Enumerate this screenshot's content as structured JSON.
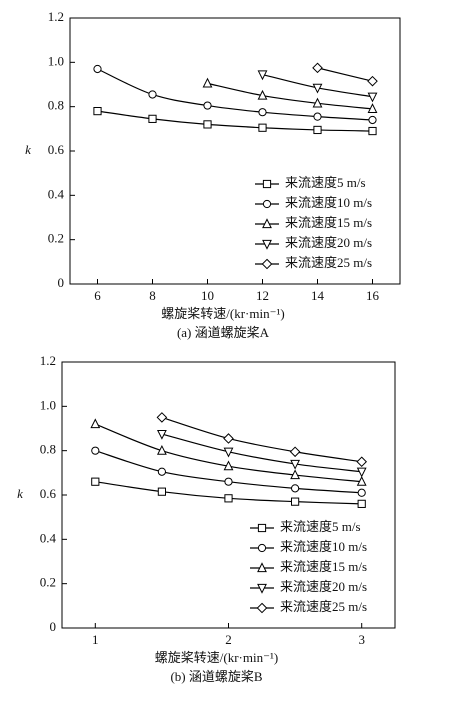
{
  "chart_data": [
    {
      "type": "line",
      "title": "(a) 涵道螺旋桨A",
      "x_label": "螺旋桨转速/(kr·min⁻¹)",
      "y_label": "k",
      "xlim": [
        5,
        17
      ],
      "xticks": [
        6,
        8,
        10,
        12,
        14,
        16
      ],
      "ylim": [
        0,
        1.2
      ],
      "yticks": [
        0,
        0.2,
        0.4,
        0.6,
        0.8,
        {
          "value": 1,
          "label": "1.0"
        },
        1.2
      ],
      "legend": "lower right",
      "series": [
        {
          "name": "来流速度5 m/s",
          "color": "#000000",
          "marker": "square",
          "x": [
            6,
            8,
            10,
            12,
            14,
            16
          ],
          "values": [
            0.78,
            0.745,
            0.72,
            0.705,
            0.695,
            0.69
          ]
        },
        {
          "name": "来流速度10 m/s",
          "color": "#000000",
          "marker": "circle",
          "x": [
            6,
            8,
            10,
            12,
            14,
            16
          ],
          "values": [
            0.97,
            0.855,
            0.805,
            0.775,
            0.755,
            0.74
          ]
        },
        {
          "name": "来流速度15 m/s",
          "color": "#000000",
          "marker": "triangle-up",
          "x": [
            10,
            12,
            14,
            16
          ],
          "values": [
            0.905,
            0.85,
            0.815,
            0.79
          ]
        },
        {
          "name": "来流速度20 m/s",
          "color": "#000000",
          "marker": "triangle-down",
          "x": [
            12,
            14,
            16
          ],
          "values": [
            0.945,
            0.885,
            0.845
          ]
        },
        {
          "name": "来流速度25 m/s",
          "color": "#000000",
          "marker": "diamond",
          "x": [
            14,
            16
          ],
          "values": [
            0.975,
            0.915
          ]
        }
      ]
    },
    {
      "type": "line",
      "title": "(b) 涵道螺旋桨B",
      "x_label": "螺旋桨转速/(kr·min⁻¹)",
      "y_label": "k",
      "xlim": [
        0.75,
        3.25
      ],
      "xticks": [
        1,
        2,
        3
      ],
      "ylim": [
        0,
        1.2
      ],
      "yticks": [
        0,
        0.2,
        0.4,
        0.6,
        0.8,
        {
          "value": 1,
          "label": "1.0"
        },
        1.2
      ],
      "legend": "lower right",
      "series": [
        {
          "name": "来流速度5 m/s",
          "color": "#000000",
          "marker": "square",
          "x": [
            1,
            1.5,
            2,
            2.5,
            3
          ],
          "values": [
            0.66,
            0.615,
            0.585,
            0.57,
            0.56
          ]
        },
        {
          "name": "来流速度10 m/s",
          "color": "#000000",
          "marker": "circle",
          "x": [
            1,
            1.5,
            2,
            2.5,
            3
          ],
          "values": [
            0.8,
            0.705,
            0.66,
            0.63,
            0.61
          ]
        },
        {
          "name": "来流速度15 m/s",
          "color": "#000000",
          "marker": "triangle-up",
          "x": [
            1,
            1.5,
            2,
            2.5,
            3
          ],
          "values": [
            0.92,
            0.8,
            0.73,
            0.69,
            0.66
          ]
        },
        {
          "name": "来流速度20 m/s",
          "color": "#000000",
          "marker": "triangle-down",
          "x": [
            1.5,
            2,
            2.5,
            3
          ],
          "values": [
            0.875,
            0.795,
            0.74,
            0.705
          ]
        },
        {
          "name": "来流速度25 m/s",
          "color": "#000000",
          "marker": "diamond",
          "x": [
            1.5,
            2,
            2.5,
            3
          ],
          "values": [
            0.95,
            0.855,
            0.795,
            0.75
          ]
        }
      ]
    }
  ]
}
